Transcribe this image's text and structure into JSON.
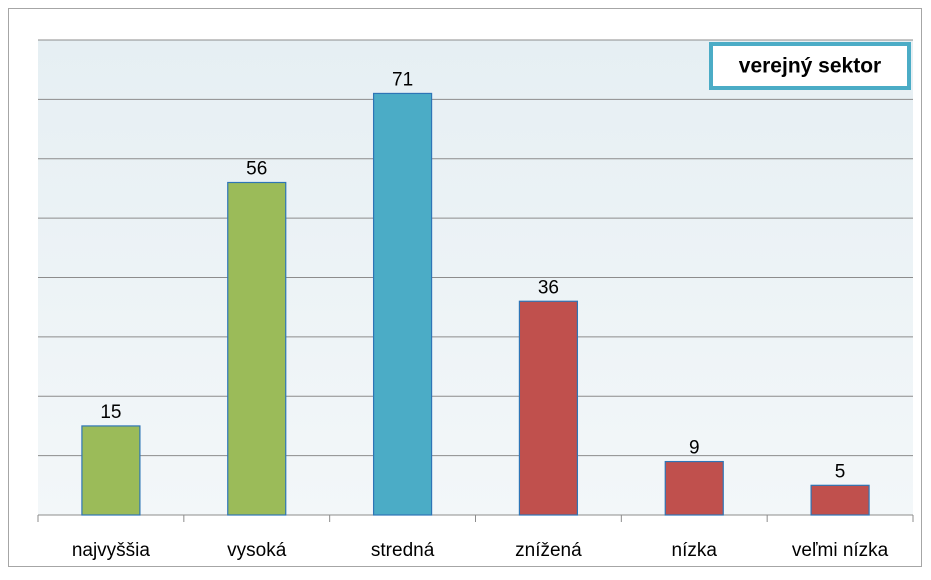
{
  "chart_data": {
    "type": "bar",
    "title": "verejný sektor",
    "categories": [
      "najvyššia",
      "vysoká",
      "stredná",
      "znížená",
      "nízka",
      "veľmi nízka"
    ],
    "values": [
      15,
      56,
      71,
      36,
      9,
      5
    ],
    "colors": [
      "#9bbb59",
      "#9bbb59",
      "#4bacc6",
      "#c0504d",
      "#c0504d",
      "#c0504d"
    ],
    "ylim": [
      0,
      80
    ],
    "yticks": [
      0,
      10,
      20,
      30,
      40,
      50,
      60,
      70,
      80
    ],
    "grid": true
  }
}
